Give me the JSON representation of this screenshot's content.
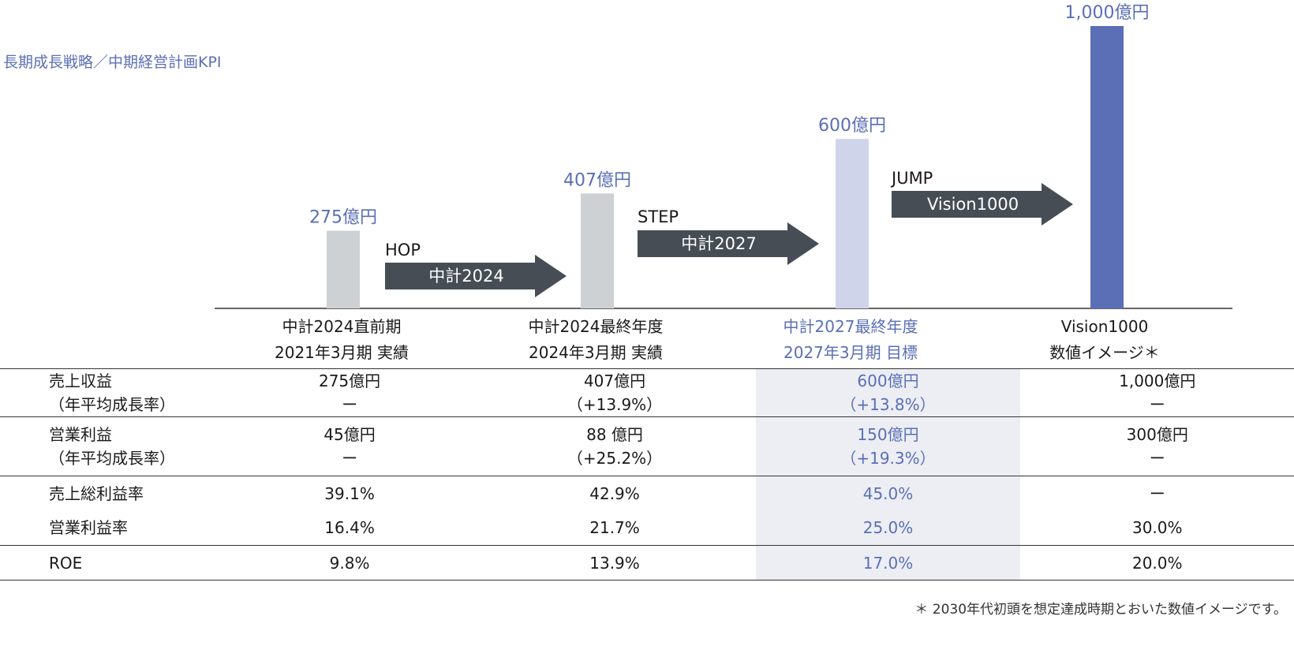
{
  "title": "長期成長戦略／中期経営計画KPI",
  "chart_data": {
    "type": "bar",
    "categories": [
      "中計2024直前期 2021年3月期 実績",
      "中計2024最終年度 2024年3月期 実績",
      "中計2027最終年度 2027年3月期 目標",
      "Vision1000 数値イメージ＊"
    ],
    "values": [
      275,
      407,
      600,
      1000
    ],
    "value_labels": [
      "275億円",
      "407億円",
      "600億円",
      "1,000億円"
    ],
    "colors": [
      "#cdd1d4",
      "#cdd1d4",
      "#d0d4ea",
      "#5a6fb5"
    ],
    "label_color": "#5a6fb5",
    "ylim": [
      0,
      1000
    ],
    "xlabel": "",
    "ylabel": ""
  },
  "categories": [
    {
      "line1": "中計2024直前期",
      "line2": "2021年3月期  実績"
    },
    {
      "line1": "中計2024最終年度",
      "line2": "2024年3月期  実績"
    },
    {
      "line1": "中計2027最終年度",
      "line2": "2027年3月期  目標"
    },
    {
      "line1": "Vision1000",
      "line2": "数値イメージ＊"
    }
  ],
  "arrows": [
    {
      "top": "HOP",
      "label": "中計2024"
    },
    {
      "top": "STEP",
      "label": "中計2027"
    },
    {
      "top": "JUMP",
      "label": "Vision1000"
    }
  ],
  "table": {
    "rows": [
      {
        "label1": "売上収益",
        "label2": "（年平均成長率）",
        "c": [
          [
            "275億円",
            "ー"
          ],
          [
            "407億円",
            "（+13.9%）"
          ],
          [
            "600億円",
            "（+13.8%）"
          ],
          [
            "1,000億円",
            "ー"
          ]
        ]
      },
      {
        "label1": "営業利益",
        "label2": "（年平均成長率）",
        "c": [
          [
            "45億円",
            "ー"
          ],
          [
            "88 億円",
            "（+25.2%）"
          ],
          [
            "150億円",
            "（+19.3%）"
          ],
          [
            "300億円",
            "ー"
          ]
        ]
      },
      {
        "label1": "売上総利益率",
        "c": [
          "39.1%",
          "42.9%",
          "45.0%",
          "ー"
        ]
      },
      {
        "label1": "営業利益率",
        "c": [
          "16.4%",
          "21.7%",
          "25.0%",
          "30.0%"
        ]
      },
      {
        "label1": "ROE",
        "c": [
          "9.8%",
          "13.9%",
          "17.0%",
          "20.0%"
        ]
      }
    ]
  },
  "footnote": "＊ 2030年代初頭を想定達成時期とおいた数値イメージです。"
}
